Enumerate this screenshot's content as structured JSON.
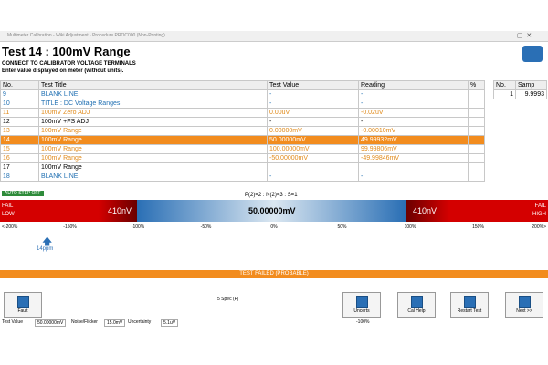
{
  "window": {
    "title": "Multimeter Calibration - Wiki Adjustment - Procedure PROC000 (Non-Printing)"
  },
  "header": {
    "title": "Test 14 : 100mV Range",
    "instruction": "CONNECT TO CALIBRATOR VOLTAGE TERMINALS",
    "prompt": "Enter value displayed on meter (without units)."
  },
  "table": {
    "columns": [
      "No.",
      "Test Title",
      "Test Value",
      "Reading",
      "%"
    ],
    "rows": [
      {
        "no": "9",
        "title": "BLANK LINE",
        "value": "-",
        "reading": "-"
      },
      {
        "no": "10",
        "title": "TITLE : DC Voltage Ranges",
        "value": "-",
        "reading": "-"
      },
      {
        "no": "11",
        "title": "100mV Zero ADJ",
        "value": "0.00uV",
        "reading": "-0.02uV"
      },
      {
        "no": "12",
        "title": "100mV +FS ADJ",
        "value": "-",
        "reading": "-"
      },
      {
        "no": "13",
        "title": "100mV Range",
        "value": "0.00000mV",
        "reading": "-0.00010mV"
      },
      {
        "no": "14",
        "title": "100mV Range",
        "value": "50.00000mV",
        "reading": "49.99932mV"
      },
      {
        "no": "15",
        "title": "100mV Range",
        "value": "100.00000mV",
        "reading": "99.99806mV"
      },
      {
        "no": "16",
        "title": "100mV Range",
        "value": "-50.00000mV",
        "reading": "-49.99846mV"
      },
      {
        "no": "17",
        "title": "100mV Range"
      },
      {
        "no": "18",
        "title": "BLANK LINE",
        "value": "-",
        "reading": "-"
      }
    ]
  },
  "side_table": {
    "columns": [
      "No.",
      "Samp"
    ],
    "rows": [
      [
        "1",
        "9.9993"
      ]
    ]
  },
  "auto_step": "AUTO STEP OFF",
  "stats": "P(2)=2 : N(2)=3 : S=1",
  "gauge": {
    "fail_low": [
      "FAIL",
      "LOW"
    ],
    "fail_high": [
      "FAIL",
      "HIGH"
    ],
    "low_limit": "410nV",
    "nominal": "50.00000mV",
    "high_limit": "410nV",
    "scale": [
      "<-200%",
      "-150%",
      "-100%",
      "-50%",
      "0%",
      "50%",
      "100%",
      "150%",
      "200%>"
    ],
    "marker": "14ppm"
  },
  "result": "TEST FAILED (PROBABLE)",
  "buttons": {
    "fault": "Fault",
    "spec": "5 Spec (F)",
    "uncerts": "Uncerts",
    "help": "Cal Help",
    "restart": "Restart Test",
    "next": "Next >>"
  },
  "status": {
    "test_value_label": "Test Value",
    "test_value": "50.00000mV",
    "noise_label": "Noise/Flicker",
    "noise": "15.0mV",
    "uncert_label": "Uncertainty",
    "uncert": "5.1uV",
    "deviation": "-100%"
  }
}
